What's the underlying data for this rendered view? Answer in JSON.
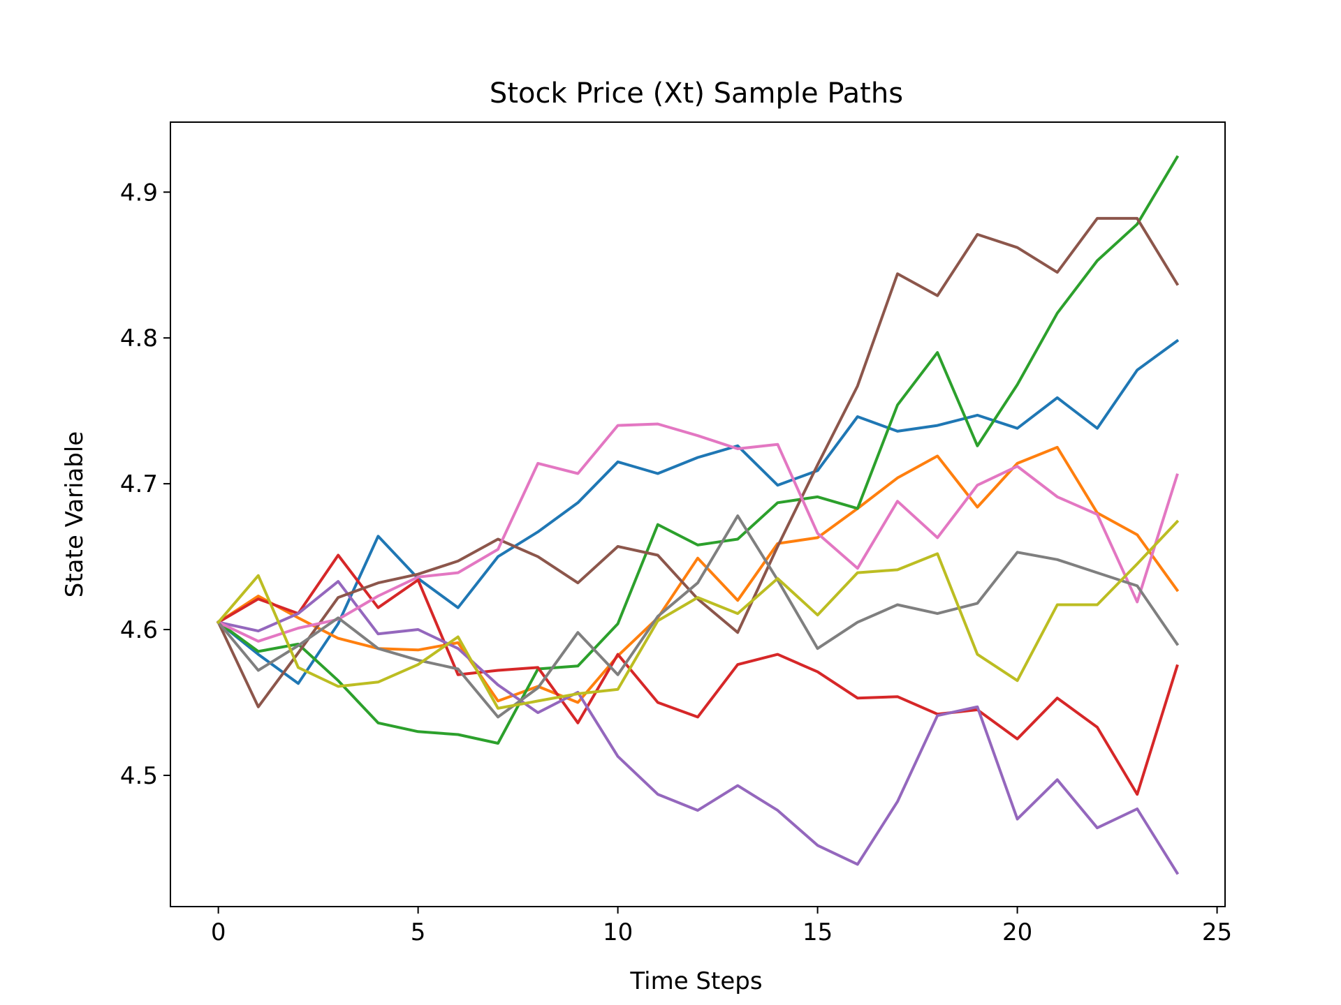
{
  "chart_data": {
    "type": "line",
    "title": "Stock Price (Xt) Sample Paths",
    "xlabel": "Time Steps",
    "ylabel": "State Variable",
    "xlim": [
      -1.2,
      25.2
    ],
    "ylim": [
      4.41,
      4.948
    ],
    "x_ticks": [
      0,
      5,
      10,
      15,
      20,
      25
    ],
    "y_ticks": [
      4.5,
      4.6,
      4.7,
      4.8,
      4.9
    ],
    "x_tick_labels": [
      "0",
      "5",
      "10",
      "15",
      "20",
      "25"
    ],
    "y_tick_labels": [
      "4.5",
      "4.6",
      "4.7",
      "4.8",
      "4.9"
    ],
    "grid": false,
    "legend": "none",
    "x": [
      0,
      1,
      2,
      3,
      4,
      5,
      6,
      7,
      8,
      9,
      10,
      11,
      12,
      13,
      14,
      15,
      16,
      17,
      18,
      19,
      20,
      21,
      22,
      23,
      24
    ],
    "series": [
      {
        "color": "#1f77b4",
        "values": [
          4.605,
          4.583,
          4.563,
          4.604,
          4.664,
          4.635,
          4.615,
          4.65,
          4.667,
          4.687,
          4.715,
          4.707,
          4.718,
          4.726,
          4.699,
          4.709,
          4.746,
          4.736,
          4.74,
          4.747,
          4.738,
          4.759,
          4.738,
          4.778,
          4.798
        ]
      },
      {
        "color": "#ff7f0e",
        "values": [
          4.605,
          4.623,
          4.608,
          4.594,
          4.587,
          4.586,
          4.591,
          4.551,
          4.561,
          4.55,
          4.582,
          4.608,
          4.649,
          4.62,
          4.659,
          4.663,
          4.683,
          4.704,
          4.719,
          4.684,
          4.714,
          4.725,
          4.68,
          4.665,
          4.627
        ]
      },
      {
        "color": "#2ca02c",
        "values": [
          4.605,
          4.585,
          4.59,
          4.565,
          4.536,
          4.53,
          4.528,
          4.522,
          4.573,
          4.575,
          4.604,
          4.672,
          4.658,
          4.662,
          4.687,
          4.691,
          4.683,
          4.754,
          4.79,
          4.726,
          4.768,
          4.817,
          4.853,
          4.878,
          4.924
        ]
      },
      {
        "color": "#d62728",
        "values": [
          4.605,
          4.621,
          4.611,
          4.651,
          4.615,
          4.634,
          4.569,
          4.572,
          4.574,
          4.536,
          4.583,
          4.55,
          4.54,
          4.576,
          4.583,
          4.571,
          4.553,
          4.554,
          4.542,
          4.545,
          4.525,
          4.553,
          4.533,
          4.487,
          4.575
        ]
      },
      {
        "color": "#9467bd",
        "values": [
          4.605,
          4.599,
          4.611,
          4.633,
          4.597,
          4.6,
          4.587,
          4.562,
          4.543,
          4.557,
          4.513,
          4.487,
          4.476,
          4.493,
          4.476,
          4.452,
          4.439,
          4.482,
          4.541,
          4.547,
          4.47,
          4.497,
          4.464,
          4.477,
          4.433
        ]
      },
      {
        "color": "#8c564b",
        "values": [
          4.605,
          4.547,
          4.584,
          4.622,
          4.632,
          4.638,
          4.647,
          4.662,
          4.65,
          4.632,
          4.657,
          4.651,
          4.621,
          4.598,
          4.657,
          4.713,
          4.767,
          4.844,
          4.829,
          4.871,
          4.862,
          4.845,
          4.882,
          4.882,
          4.837
        ]
      },
      {
        "color": "#e377c2",
        "values": [
          4.605,
          4.592,
          4.601,
          4.607,
          4.623,
          4.636,
          4.639,
          4.655,
          4.714,
          4.707,
          4.74,
          4.741,
          4.733,
          4.724,
          4.727,
          4.666,
          4.642,
          4.688,
          4.663,
          4.699,
          4.712,
          4.691,
          4.679,
          4.619,
          4.706
        ]
      },
      {
        "color": "#7f7f7f",
        "values": [
          4.605,
          4.572,
          4.589,
          4.608,
          4.587,
          4.579,
          4.573,
          4.54,
          4.56,
          4.598,
          4.569,
          4.609,
          4.632,
          4.678,
          4.634,
          4.587,
          4.605,
          4.617,
          4.611,
          4.618,
          4.653,
          4.648,
          4.639,
          4.63,
          4.59
        ]
      },
      {
        "color": "#bcbd22",
        "values": [
          4.605,
          4.637,
          4.574,
          4.561,
          4.564,
          4.576,
          4.595,
          4.546,
          4.551,
          4.556,
          4.559,
          4.606,
          4.622,
          4.611,
          4.635,
          4.61,
          4.639,
          4.641,
          4.652,
          4.583,
          4.565,
          4.617,
          4.617,
          4.645,
          4.674
        ]
      }
    ]
  }
}
